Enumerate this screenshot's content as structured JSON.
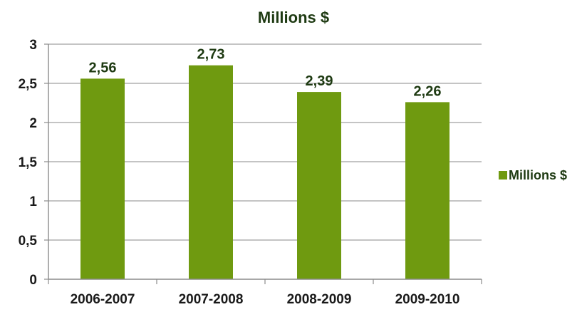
{
  "chart_data": {
    "type": "bar",
    "title": "Millions $",
    "categories": [
      "2006-2007",
      "2007-2008",
      "2008-2009",
      "2009-2010"
    ],
    "series": [
      {
        "name": "Millions $",
        "values": [
          2.56,
          2.73,
          2.39,
          2.26
        ],
        "labels": [
          "2,56",
          "2,73",
          "2,39",
          "2,26"
        ]
      }
    ],
    "ylim": [
      0,
      3
    ],
    "yticks": [
      0,
      0.5,
      1,
      1.5,
      2,
      2.5,
      3
    ],
    "ytick_labels": [
      "0",
      "0,5",
      "1",
      "1,5",
      "2",
      "2,5",
      "3"
    ],
    "grid": true,
    "legend_position": "right",
    "colors": {
      "bar": "#6f9a10",
      "grid": "#a0a0a0",
      "axis": "#8c8c8c"
    }
  }
}
